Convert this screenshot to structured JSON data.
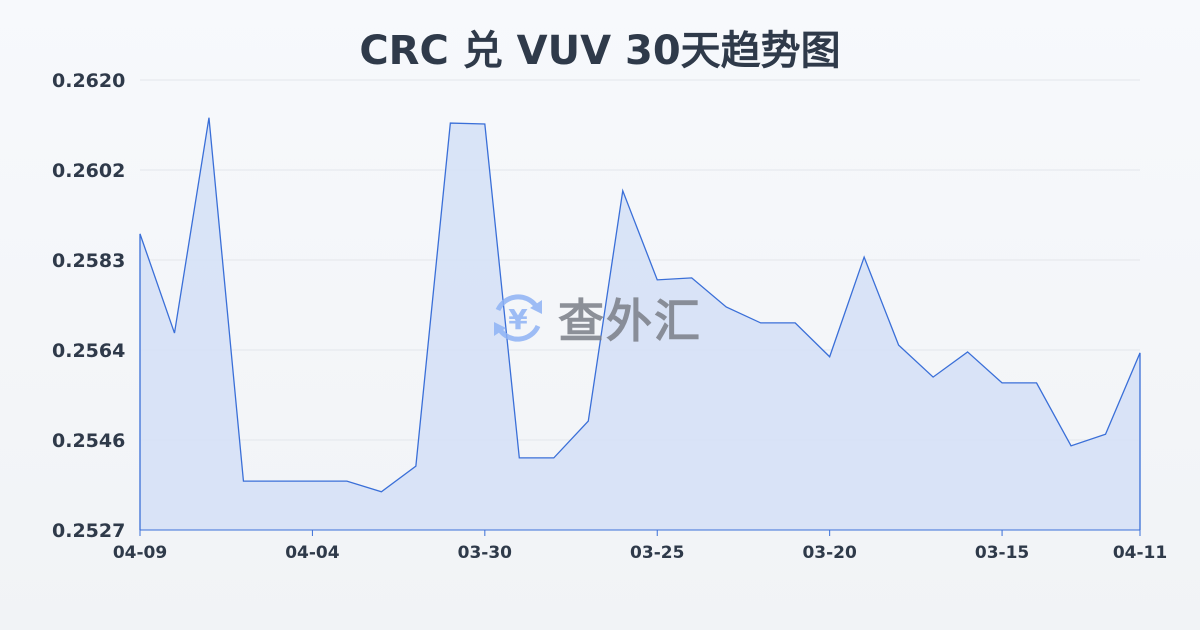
{
  "chart_data": {
    "type": "area",
    "title": "CRC 兑 VUV 30天趋势图",
    "xlabel": "",
    "ylabel": "",
    "x": [
      "04-09",
      "04-08",
      "04-07",
      "04-06",
      "04-05",
      "04-04",
      "04-03",
      "04-02",
      "04-01",
      "03-31",
      "03-30",
      "03-29",
      "03-28",
      "03-27",
      "03-26",
      "03-25",
      "03-24",
      "03-23",
      "03-22",
      "03-21",
      "03-20",
      "03-19",
      "03-18",
      "03-17",
      "03-16",
      "03-15",
      "03-14",
      "03-13",
      "03-12",
      "04-11"
    ],
    "x_tick_labels": [
      "04-09",
      "04-04",
      "03-30",
      "03-25",
      "03-20",
      "03-15",
      "04-11"
    ],
    "values": [
      0.25882,
      0.25677,
      0.26122,
      0.25371,
      0.25371,
      0.25371,
      0.25371,
      0.25349,
      0.25402,
      0.26111,
      0.26109,
      0.25419,
      0.25419,
      0.25495,
      0.25971,
      0.25787,
      0.25791,
      0.25731,
      0.25698,
      0.25698,
      0.25628,
      0.25834,
      0.25652,
      0.25586,
      0.25638,
      0.25574,
      0.25574,
      0.25444,
      0.25468,
      0.25636
    ],
    "y_tick_labels": [
      "0.2620",
      "0.2602",
      "0.2583",
      "0.2564",
      "0.2546",
      "0.2527"
    ],
    "ylim": [
      0.2527,
      0.262
    ],
    "grid": true,
    "colors": {
      "line": "#3a6fd8",
      "fill": "#d6e1f6",
      "grid": "#e3e6eb"
    }
  },
  "watermark": {
    "text": "查外汇",
    "icon": "yen-exchange-icon"
  }
}
